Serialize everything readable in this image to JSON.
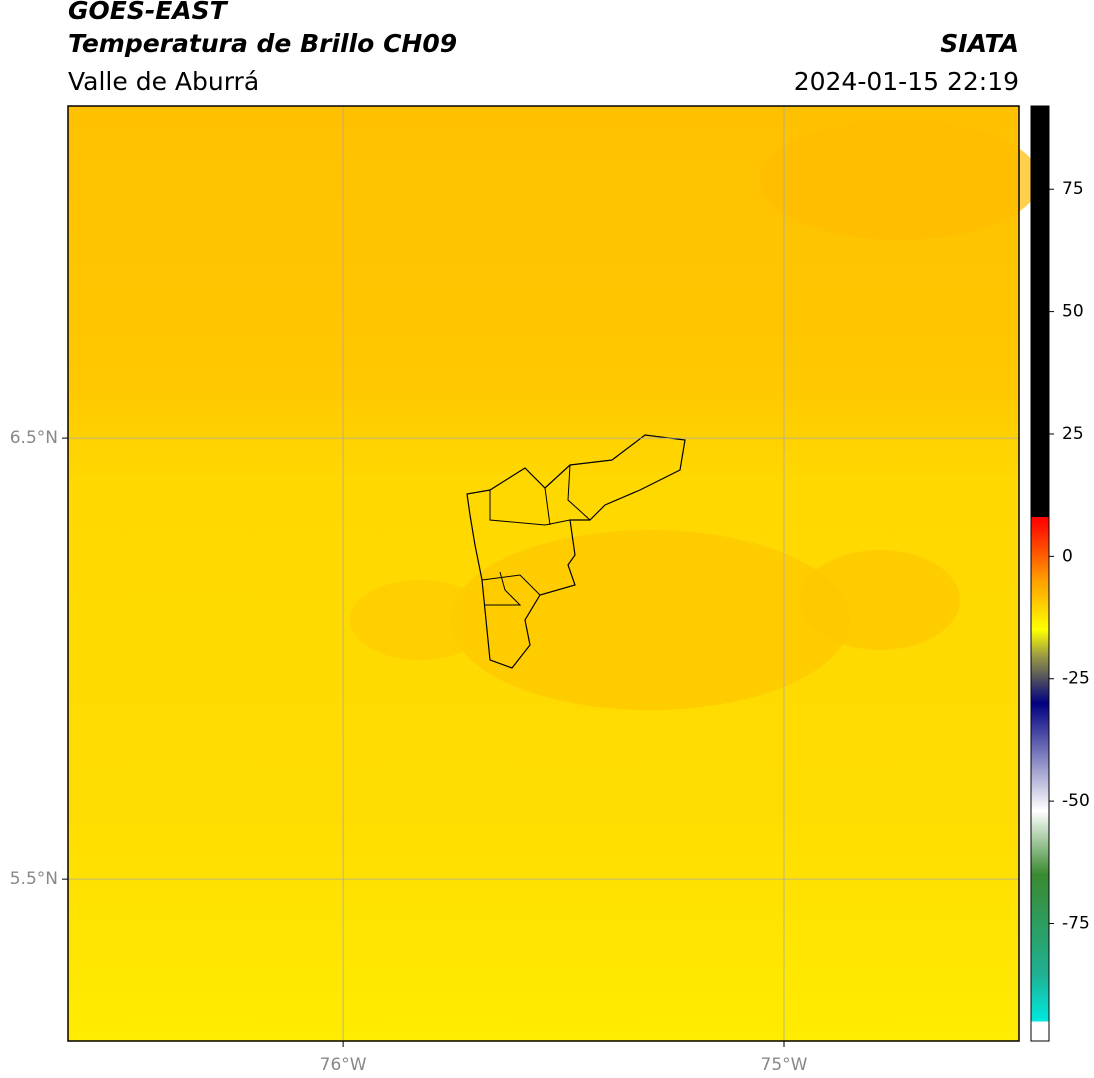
{
  "header": {
    "title": "GOES-EAST",
    "subtitle": "Temperatura de Brillo CH09",
    "region": "Valle de Aburrá",
    "source": "SIATA",
    "datetime": "2024-01-15 22:19"
  },
  "map": {
    "lat_range": [
      5.133,
      7.253
    ],
    "lon_range": [
      -76.624,
      -74.467
    ],
    "lat_ticks": [
      {
        "value": 6.5,
        "label": "6.5°N"
      },
      {
        "value": 5.5,
        "label": "5.5°N"
      }
    ],
    "lon_ticks": [
      {
        "value": -76,
        "label": "76°W"
      },
      {
        "value": -75,
        "label": "75°W"
      }
    ]
  },
  "colorbar": {
    "range": [
      -99,
      92
    ],
    "ticks": [
      75,
      50,
      25,
      0,
      -25,
      -50,
      -75
    ],
    "stops": [
      {
        "value": -99,
        "color": "#ffffff"
      },
      {
        "value": -95,
        "color": "#ffffff"
      },
      {
        "value": -95,
        "color": "#00e8e0"
      },
      {
        "value": -85,
        "color": "#20b090"
      },
      {
        "value": -65,
        "color": "#3a8a30"
      },
      {
        "value": -52,
        "color": "#ffffff"
      },
      {
        "value": -45,
        "color": "#b0b0d8"
      },
      {
        "value": -30,
        "color": "#000080"
      },
      {
        "value": -20,
        "color": "#a0a040"
      },
      {
        "value": -15,
        "color": "#ffff00"
      },
      {
        "value": -5,
        "color": "#ffa000"
      },
      {
        "value": 5,
        "color": "#ff2000"
      },
      {
        "value": 8,
        "color": "#ff0000"
      },
      {
        "value": 8,
        "color": "#000000"
      },
      {
        "value": 92,
        "color": "#000000"
      }
    ]
  }
}
